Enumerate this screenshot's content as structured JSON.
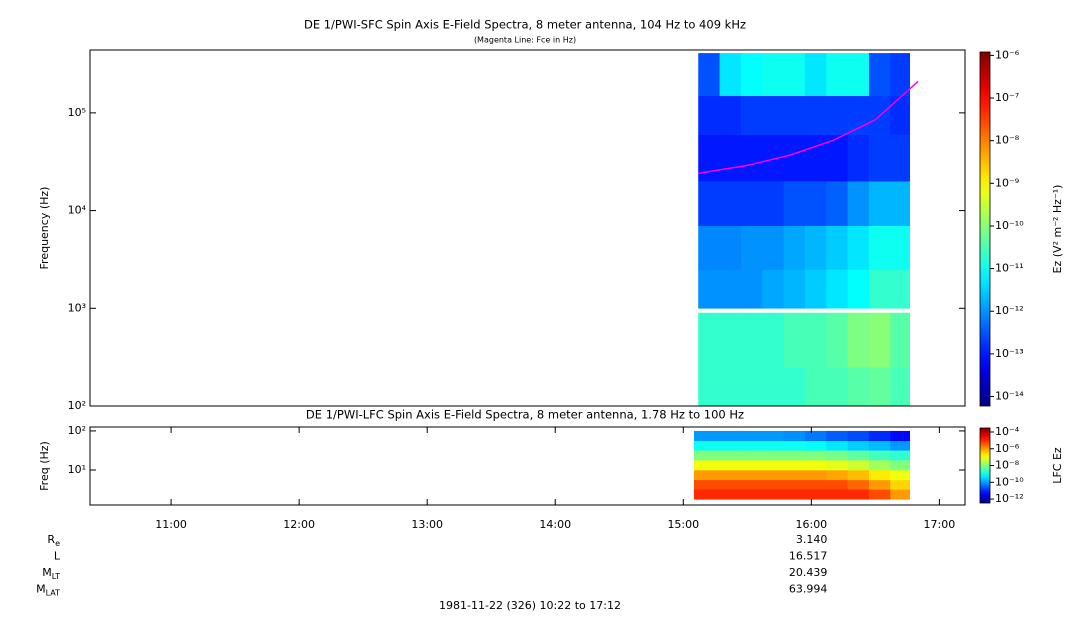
{
  "chart_data": [
    {
      "type": "spectrogram",
      "title": "DE 1/PWI-SFC  Spin Axis E-Field Spectra, 8 meter antenna, 104 Hz to 409 kHz",
      "subtitle": "(Magenta Line: Fce in Hz)",
      "ylabel": "Frequency (Hz)",
      "yscale": "log",
      "xlim": [
        "10:22",
        "17:12"
      ],
      "ylim": [
        100,
        440000
      ],
      "yticks": [
        {
          "value": 100,
          "label": "10²"
        },
        {
          "value": 1000,
          "label": "10³"
        },
        {
          "value": 10000,
          "label": "10⁴"
        },
        {
          "value": 100000,
          "label": "10⁵"
        }
      ],
      "x_bins": [
        "15:07",
        "15:17",
        "15:27",
        "15:37",
        "15:47",
        "15:57",
        "16:07",
        "16:17",
        "16:27",
        "16:37",
        "16:46"
      ],
      "y_bins": [
        100,
        250,
        900,
        1000,
        2500,
        7000,
        20000,
        60000,
        150000,
        409000
      ],
      "values": [
        [
          2e-11,
          2e-11,
          2e-11,
          2e-11,
          2e-11,
          3e-11,
          3e-11,
          4e-11,
          5e-11,
          3e-11
        ],
        [
          2e-11,
          2e-11,
          2e-11,
          2e-11,
          3e-11,
          3e-11,
          4e-11,
          8e-11,
          1e-10,
          4e-11
        ],
        [
          null,
          null,
          null,
          null,
          null,
          null,
          null,
          null,
          null,
          null
        ],
        [
          1e-12,
          1e-12,
          1e-12,
          1.5e-12,
          2e-12,
          3e-12,
          5e-12,
          8e-12,
          2e-11,
          2e-11
        ],
        [
          8e-13,
          8e-13,
          1e-12,
          1e-12,
          1.5e-12,
          2e-12,
          3e-12,
          5e-12,
          1e-11,
          1e-11
        ],
        [
          2e-13,
          2e-13,
          2e-13,
          2e-13,
          3e-13,
          3e-13,
          4e-13,
          1e-12,
          2e-12,
          2e-12
        ],
        [
          1e-13,
          1e-13,
          1e-13,
          1e-13,
          1e-13,
          1e-13,
          1e-13,
          1.5e-13,
          2e-13,
          2e-13
        ],
        [
          1.5e-13,
          1.5e-13,
          2e-13,
          2e-13,
          2e-13,
          2e-13,
          2e-13,
          2e-13,
          2e-13,
          1.5e-13
        ],
        [
          3e-13,
          5e-12,
          8e-12,
          1e-11,
          1e-11,
          5e-12,
          1e-11,
          1e-11,
          3e-13,
          2e-13
        ]
      ],
      "colorbar": {
        "label": "Ez (V² m⁻² Hz⁻¹)",
        "scale": "log",
        "colormap": "jet",
        "clim": [
          6e-15,
          1.2e-06
        ],
        "ticks": [
          {
            "value": 1e-06,
            "label": "10⁻⁶"
          },
          {
            "value": 1e-07,
            "label": "10⁻⁷"
          },
          {
            "value": 1e-08,
            "label": "10⁻⁸"
          },
          {
            "value": 1e-09,
            "label": "10⁻⁹"
          },
          {
            "value": 1e-10,
            "label": "10⁻¹⁰"
          },
          {
            "value": 1e-11,
            "label": "10⁻¹¹"
          },
          {
            "value": 1e-12,
            "label": "10⁻¹²"
          },
          {
            "value": 1e-13,
            "label": "10⁻¹³"
          },
          {
            "value": 1e-14,
            "label": "10⁻¹⁴"
          }
        ]
      },
      "line": {
        "color": "#ff00ff",
        "x": [
          "15:07",
          "15:30",
          "15:50",
          "16:10",
          "16:30",
          "16:50"
        ],
        "values": [
          24000,
          29000,
          37000,
          52000,
          85000,
          210000
        ]
      }
    },
    {
      "type": "spectrogram",
      "title": "DE 1/PWI-LFC  Spin Axis E-Field Spectra, 8 meter antenna, 1.78 Hz to 100 Hz",
      "ylabel": "Freq (Hz)",
      "yscale": "log",
      "xlim": [
        "10:22",
        "17:12"
      ],
      "xticks": [
        "11:00",
        "12:00",
        "13:00",
        "14:00",
        "15:00",
        "16:00",
        "17:00"
      ],
      "ylim": [
        1.27,
        126
      ],
      "yticks": [
        {
          "value": 10,
          "label": "10¹"
        },
        {
          "value": 100,
          "label": "10²"
        }
      ],
      "x_bins": [
        "15:05",
        "15:17",
        "15:27",
        "15:37",
        "15:47",
        "15:57",
        "16:07",
        "16:17",
        "16:27",
        "16:37",
        "16:46"
      ],
      "y_bins": [
        1.78,
        3.2,
        5.6,
        10,
        18,
        32,
        56,
        100
      ],
      "values": [
        [
          1e-05,
          1e-05,
          1e-05,
          1e-05,
          1e-05,
          1e-05,
          1e-05,
          1e-05,
          5e-06,
          1e-06
        ],
        [
          5e-06,
          5e-06,
          5e-06,
          5e-06,
          5e-06,
          5e-06,
          5e-06,
          3e-06,
          1e-06,
          3e-07
        ],
        [
          1e-06,
          1e-06,
          1e-06,
          1e-06,
          1e-06,
          1e-06,
          8e-07,
          5e-07,
          2e-07,
          1e-07
        ],
        [
          1e-07,
          1e-07,
          1e-07,
          1e-07,
          1e-07,
          1e-07,
          8e-08,
          5e-08,
          2e-08,
          1e-08
        ],
        [
          1e-08,
          1e-08,
          1e-08,
          1e-08,
          1e-08,
          1e-08,
          8e-09,
          5e-09,
          3e-09,
          2e-09
        ],
        [
          1e-09,
          1e-09,
          1e-09,
          1e-09,
          1e-09,
          8e-10,
          5e-10,
          3e-10,
          2e-10,
          1e-10
        ],
        [
          1e-10,
          1e-10,
          1e-10,
          1e-10,
          8e-11,
          5e-11,
          3e-11,
          2e-11,
          1e-11,
          5e-12
        ]
      ],
      "colorbar": {
        "label": "LFC Ez",
        "scale": "log",
        "colormap": "jet",
        "clim": [
          3.4e-13,
          0.0003
        ],
        "ticks": [
          {
            "value": 0.0001,
            "label": "10⁻⁴"
          },
          {
            "value": 1e-06,
            "label": "10⁻⁶"
          },
          {
            "value": 1e-08,
            "label": "10⁻⁸"
          },
          {
            "value": 1e-10,
            "label": "10⁻¹⁰"
          },
          {
            "value": 1e-12,
            "label": "10⁻¹²"
          }
        ]
      }
    }
  ],
  "ephemeris": {
    "x": "16:00",
    "rows": [
      {
        "name": "R",
        "sub": "e",
        "value": "3.140"
      },
      {
        "name": "L",
        "value": "16.517"
      },
      {
        "name": "M",
        "sub": "LT",
        "value": "20.439"
      },
      {
        "name": "M",
        "sub": "LAT",
        "value": "63.994"
      }
    ]
  },
  "footer": "1981-11-22 (326) 10:22 to 17:12"
}
